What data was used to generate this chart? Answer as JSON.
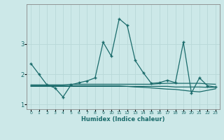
{
  "xlabel": "Humidex (Indice chaleur)",
  "bg_color": "#cce8e8",
  "line_color": "#1a6b6b",
  "grid_color": "#b8d8d8",
  "x_values": [
    0,
    1,
    2,
    3,
    4,
    5,
    6,
    7,
    8,
    9,
    10,
    11,
    12,
    13,
    14,
    15,
    16,
    17,
    18,
    19,
    20,
    21,
    22,
    23
  ],
  "y_main": [
    2.35,
    2.0,
    1.65,
    1.55,
    1.25,
    1.65,
    1.72,
    1.78,
    1.88,
    3.05,
    2.6,
    3.82,
    3.6,
    2.45,
    2.05,
    1.7,
    1.72,
    1.8,
    1.72,
    3.05,
    1.38,
    1.88,
    1.62,
    1.58
  ],
  "y_line2": [
    1.65,
    1.65,
    1.65,
    1.65,
    1.65,
    1.67,
    1.67,
    1.67,
    1.67,
    1.67,
    1.67,
    1.67,
    1.67,
    1.67,
    1.67,
    1.67,
    1.69,
    1.7,
    1.7,
    1.7,
    1.7,
    1.7,
    1.68,
    1.67
  ],
  "y_line3": [
    1.62,
    1.62,
    1.62,
    1.62,
    1.62,
    1.62,
    1.62,
    1.62,
    1.62,
    1.62,
    1.62,
    1.62,
    1.6,
    1.58,
    1.57,
    1.55,
    1.53,
    1.51,
    1.5,
    1.47,
    1.44,
    1.42,
    1.47,
    1.52
  ],
  "y_line4": [
    1.6,
    1.6,
    1.6,
    1.6,
    1.6,
    1.6,
    1.6,
    1.6,
    1.6,
    1.6,
    1.6,
    1.6,
    1.6,
    1.6,
    1.6,
    1.6,
    1.6,
    1.6,
    1.58,
    1.58,
    1.58,
    1.58,
    1.57,
    1.57
  ],
  "xlim": [
    -0.5,
    23.5
  ],
  "ylim": [
    0.85,
    4.3
  ],
  "yticks": [
    1,
    2,
    3
  ],
  "xticks": [
    0,
    1,
    2,
    3,
    4,
    5,
    6,
    7,
    8,
    9,
    10,
    11,
    12,
    13,
    14,
    15,
    16,
    17,
    18,
    19,
    20,
    21,
    22,
    23
  ],
  "xticklabels": [
    "0",
    "1",
    "2",
    "3",
    "4",
    "5",
    "6",
    "7",
    "8",
    "9",
    "10",
    "11",
    "12",
    "13",
    "14",
    "15",
    "16",
    "17",
    "18",
    "19",
    "20",
    "21",
    "22",
    "23"
  ]
}
